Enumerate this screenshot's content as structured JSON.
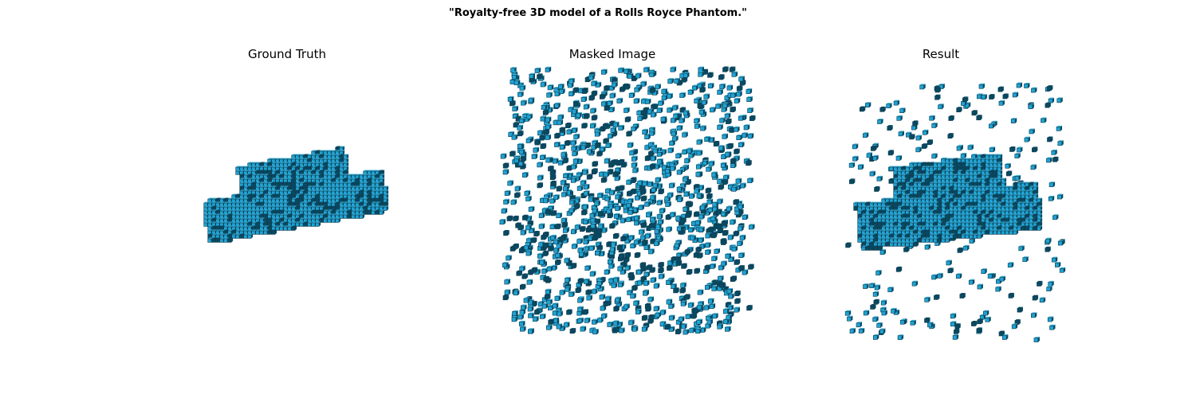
{
  "figure": {
    "title": "\"Royalty-free 3D model of a Rolls Royce Phantom.\""
  },
  "panels": [
    {
      "id": "ground-truth",
      "title": "Ground Truth"
    },
    {
      "id": "masked-image",
      "title": "Masked Image"
    },
    {
      "id": "result",
      "title": "Result"
    }
  ],
  "colors": {
    "voxel_face": "#1fa3d4",
    "voxel_edge": "#0b3a4c",
    "voxel_shadow": "#0a4a63"
  }
}
